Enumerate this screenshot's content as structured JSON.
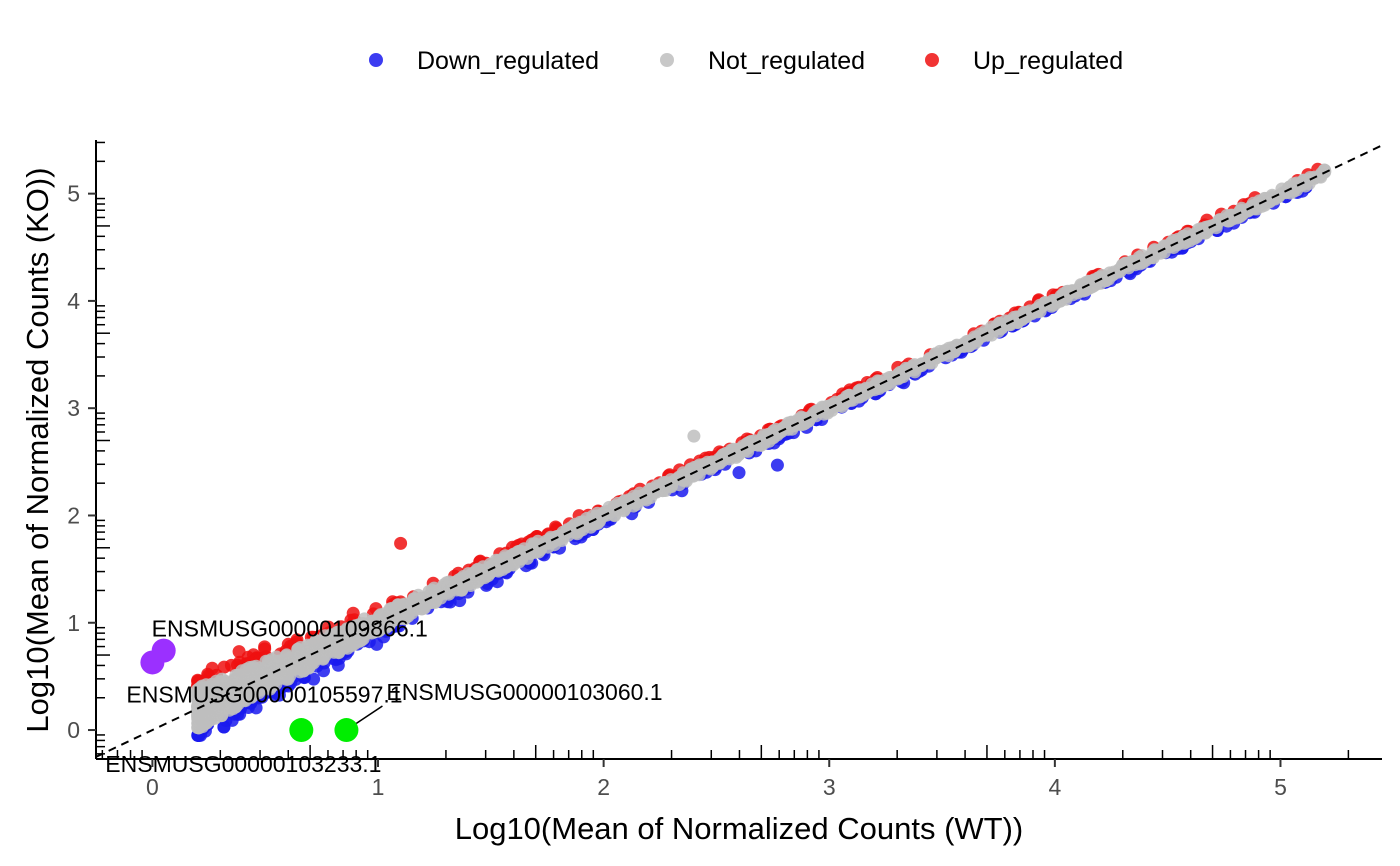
{
  "chart_data": {
    "type": "scatter",
    "title": "",
    "xlabel": "Log10(Mean of Normalized Counts (WT))",
    "ylabel": "Log10(Mean of Normalized Counts (KO))",
    "xlim": [
      -0.25,
      5.45
    ],
    "ylim": [
      -0.27,
      5.5
    ],
    "x_ticks": [
      0,
      1,
      2,
      3,
      4,
      5
    ],
    "y_ticks": [
      0,
      1,
      2,
      3,
      4,
      5
    ],
    "x_tick_labels": [
      "0",
      "1",
      "2",
      "3",
      "4",
      "5"
    ],
    "y_tick_labels": [
      "0",
      "1",
      "2",
      "3",
      "4",
      "5"
    ],
    "grid": false,
    "log_minor_ticks": true,
    "legend_position": "top",
    "reference_line": {
      "type": "identity",
      "style": "dashed",
      "color": "#000000"
    },
    "series": [
      {
        "name": "Down_regulated",
        "color": "#1a1aee"
      },
      {
        "name": "Not_regulated",
        "color": "#bebebe"
      },
      {
        "name": "Up_regulated",
        "color": "#ee1111"
      }
    ],
    "outliers": [
      {
        "series": "Not_regulated",
        "x": 2.4,
        "y": 2.74
      },
      {
        "series": "Down_regulated",
        "x": 2.77,
        "y": 2.47
      },
      {
        "series": "Up_regulated",
        "x": 1.1,
        "y": 1.74
      },
      {
        "series": "Down_regulated",
        "x": 2.6,
        "y": 2.4
      }
    ],
    "highlighted_genes": [
      {
        "label": "ENSMUSG00000109866.1",
        "x": 0.05,
        "y": 0.74,
        "color": "#9b30ff"
      },
      {
        "label": "ENSMUSG00000105597.1",
        "x": 0.0,
        "y": 0.63,
        "color": "#9b30ff"
      },
      {
        "label": "ENSMUSG00000103060.1",
        "x": 0.86,
        "y": 0.0,
        "color": "#00ee00"
      },
      {
        "label": "ENSMUSG00000103233.1",
        "x": 0.66,
        "y": 0.0,
        "color": "#00ee00"
      }
    ]
  }
}
